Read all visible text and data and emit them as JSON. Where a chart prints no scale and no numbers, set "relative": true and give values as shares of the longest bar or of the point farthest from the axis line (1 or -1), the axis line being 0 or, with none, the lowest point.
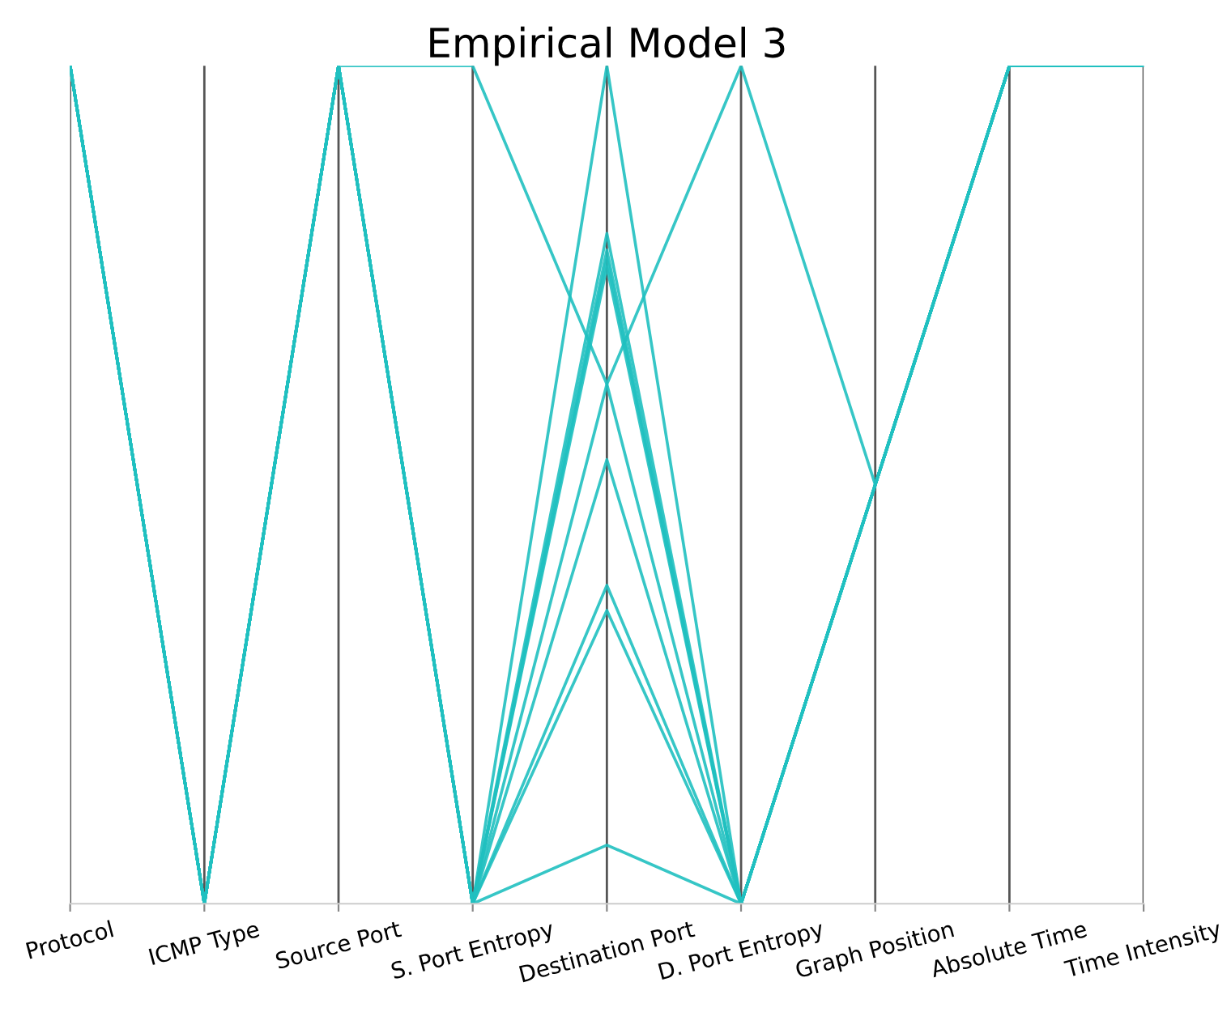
{
  "chart_data": {
    "type": "line",
    "title": "Empirical Model 3",
    "relative": true,
    "grid": "x",
    "tick_labels": "x",
    "categories": [
      "Protocol",
      "ICMP Type",
      "Source Port",
      "S. Port Entropy",
      "Destination Port",
      "D. Port Entropy",
      "Graph Position",
      "Absolute Time",
      "Time Intensity"
    ],
    "series": [
      {
        "color": "#20c0c0",
        "values": [
          1,
          0,
          1,
          1,
          0.62,
          0,
          0.5,
          1,
          1
        ]
      },
      {
        "color": "#20c0c0",
        "values": [
          1,
          0,
          1,
          0,
          0.62,
          1,
          0.5,
          1,
          1
        ]
      },
      {
        "color": "#20c0c0",
        "values": [
          1,
          0,
          1,
          0,
          1,
          0,
          0.5,
          1,
          1
        ]
      },
      {
        "color": "#20c0c0",
        "values": [
          1,
          0,
          1,
          0,
          0.8,
          0,
          0.5,
          1,
          1
        ]
      },
      {
        "color": "#20c0c0",
        "values": [
          1,
          0,
          1,
          0,
          0.78,
          0,
          0.5,
          1,
          1
        ]
      },
      {
        "color": "#20c0c0",
        "values": [
          1,
          0,
          1,
          0,
          0.77,
          0,
          0.5,
          1,
          1
        ]
      },
      {
        "color": "#20c0c0",
        "values": [
          1,
          0,
          1,
          0,
          0.76,
          0,
          0.5,
          1,
          1
        ]
      },
      {
        "color": "#20c0c0",
        "values": [
          1,
          0,
          1,
          0,
          0.53,
          0,
          0.5,
          1,
          1
        ]
      },
      {
        "color": "#20c0c0",
        "values": [
          1,
          0,
          1,
          0,
          0.38,
          0,
          0.5,
          1,
          1
        ]
      },
      {
        "color": "#20c0c0",
        "values": [
          1,
          0,
          1,
          0,
          0.35,
          0,
          0.5,
          1,
          1
        ]
      },
      {
        "color": "#20c0c0",
        "values": [
          1,
          0,
          1,
          0,
          0.07,
          0,
          0.5,
          1,
          1
        ]
      }
    ]
  }
}
